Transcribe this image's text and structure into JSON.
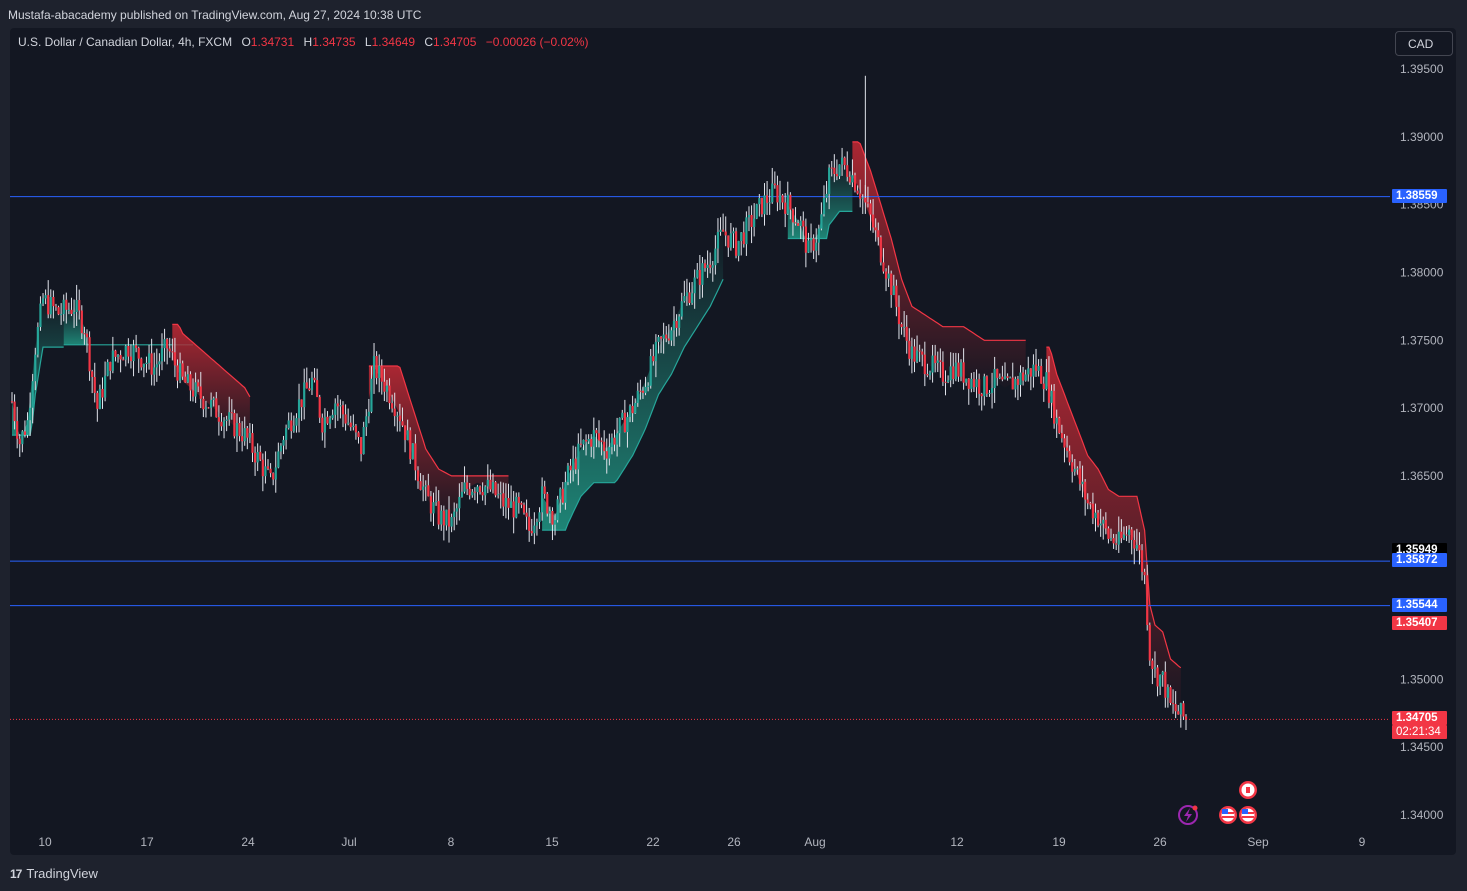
{
  "header": {
    "publisher": "Mustafa-abacademy published on TradingView.com, Aug 27, 2024 10:38 UTC"
  },
  "legend": {
    "symbol": "U.S. Dollar / Canadian Dollar, 4h, FXCM",
    "o_label": "O",
    "o_value": "1.34731",
    "h_label": "H",
    "h_value": "1.34735",
    "l_label": "L",
    "l_value": "1.34649",
    "c_label": "C",
    "c_value": "1.34705",
    "change": "−0.00026 (−0.02%)"
  },
  "currency_button": "CAD",
  "footer": {
    "brand": "TradingView",
    "logo_text": "17"
  },
  "colors": {
    "up": "#26a69a",
    "down": "#f23645",
    "level_line": "#2962ff",
    "background": "#131722",
    "cloud_bull": "#1f8a7a",
    "cloud_bear": "#b22833"
  },
  "icons": [
    "lightning-icon",
    "canada-flag-icon",
    "us-flag-icon"
  ],
  "chart_data": {
    "type": "candlestick",
    "ylim": [
      1.338,
      1.3955
    ],
    "y_ticks": [
      "1.39500",
      "1.39000",
      "1.38500",
      "1.38000",
      "1.37500",
      "1.37000",
      "1.36500",
      "1.35000",
      "1.34500",
      "1.34000"
    ],
    "x_ticks": [
      "10",
      "17",
      "24",
      "Jul",
      "8",
      "15",
      "22",
      "26",
      "Aug",
      "12",
      "19",
      "26",
      "Sep",
      "9"
    ],
    "horizontal_levels": [
      1.38559,
      1.35872,
      1.35544
    ],
    "price_labels": [
      {
        "value": 1.38559,
        "text": "1.38559",
        "color": "#2962ff"
      },
      {
        "value": 1.35949,
        "text": "1.35949",
        "color": "#000000"
      },
      {
        "value": 1.35872,
        "text": "1.35872",
        "color": "#2962ff"
      },
      {
        "value": 1.35544,
        "text": "1.35544",
        "color": "#2962ff"
      },
      {
        "value": 1.35407,
        "text": "1.35407",
        "color": "#f23645"
      },
      {
        "value": 1.34705,
        "text": "1.34705",
        "color": "#f23645"
      }
    ],
    "countdown": "02:21:34",
    "last_price": 1.34705,
    "price_path": [
      [
        0,
        1.3705
      ],
      [
        3,
        1.3675
      ],
      [
        6,
        1.369
      ],
      [
        9,
        1.3745
      ],
      [
        12,
        1.378
      ],
      [
        18,
        1.377
      ],
      [
        24,
        1.3775
      ],
      [
        28,
        1.376
      ],
      [
        33,
        1.37
      ],
      [
        38,
        1.3735
      ],
      [
        45,
        1.3745
      ],
      [
        55,
        1.373
      ],
      [
        60,
        1.3745
      ],
      [
        66,
        1.372
      ],
      [
        72,
        1.371
      ],
      [
        78,
        1.37
      ],
      [
        84,
        1.369
      ],
      [
        90,
        1.368
      ],
      [
        96,
        1.366
      ],
      [
        100,
        1.3645
      ],
      [
        105,
        1.368
      ],
      [
        110,
        1.37
      ],
      [
        116,
        1.372
      ],
      [
        120,
        1.369
      ],
      [
        125,
        1.3705
      ],
      [
        130,
        1.369
      ],
      [
        135,
        1.367
      ],
      [
        140,
        1.373
      ],
      [
        145,
        1.3715
      ],
      [
        150,
        1.3695
      ],
      [
        155,
        1.3665
      ],
      [
        160,
        1.3635
      ],
      [
        165,
        1.362
      ],
      [
        170,
        1.3615
      ],
      [
        175,
        1.364
      ],
      [
        180,
        1.3645
      ],
      [
        185,
        1.364
      ],
      [
        190,
        1.363
      ],
      [
        196,
        1.3625
      ],
      [
        200,
        1.361
      ],
      [
        205,
        1.3635
      ],
      [
        210,
        1.362
      ],
      [
        215,
        1.365
      ],
      [
        220,
        1.367
      ],
      [
        225,
        1.368
      ],
      [
        230,
        1.367
      ],
      [
        235,
        1.3685
      ],
      [
        240,
        1.37
      ],
      [
        245,
        1.372
      ],
      [
        250,
        1.3745
      ],
      [
        255,
        1.376
      ],
      [
        260,
        1.378
      ],
      [
        265,
        1.3795
      ],
      [
        270,
        1.381
      ],
      [
        275,
        1.383
      ],
      [
        280,
        1.382
      ],
      [
        285,
        1.3835
      ],
      [
        290,
        1.385
      ],
      [
        295,
        1.386
      ],
      [
        300,
        1.385
      ],
      [
        305,
        1.3835
      ],
      [
        308,
        1.3815
      ],
      [
        312,
        1.383
      ],
      [
        316,
        1.387
      ],
      [
        320,
        1.388
      ],
      [
        324,
        1.3875
      ],
      [
        328,
        1.386
      ],
      [
        332,
        1.384
      ],
      [
        336,
        1.3815
      ],
      [
        340,
        1.379
      ],
      [
        344,
        1.376
      ],
      [
        348,
        1.374
      ],
      [
        352,
        1.3735
      ],
      [
        356,
        1.373
      ],
      [
        360,
        1.3725
      ],
      [
        364,
        1.373
      ],
      [
        368,
        1.3725
      ],
      [
        372,
        1.372
      ],
      [
        376,
        1.3715
      ],
      [
        380,
        1.372
      ],
      [
        384,
        1.3715
      ],
      [
        388,
        1.372
      ],
      [
        392,
        1.3725
      ],
      [
        396,
        1.373
      ],
      [
        400,
        1.372
      ],
      [
        404,
        1.369
      ],
      [
        408,
        1.367
      ],
      [
        412,
        1.365
      ],
      [
        416,
        1.363
      ],
      [
        420,
        1.362
      ],
      [
        424,
        1.3605
      ],
      [
        428,
        1.36
      ],
      [
        432,
        1.361
      ],
      [
        435,
        1.36
      ],
      [
        438,
        1.3575
      ],
      [
        440,
        1.352
      ],
      [
        442,
        1.3505
      ],
      [
        445,
        1.35
      ],
      [
        448,
        1.348
      ],
      [
        451,
        1.3475
      ],
      [
        454,
        1.34705
      ]
    ]
  }
}
